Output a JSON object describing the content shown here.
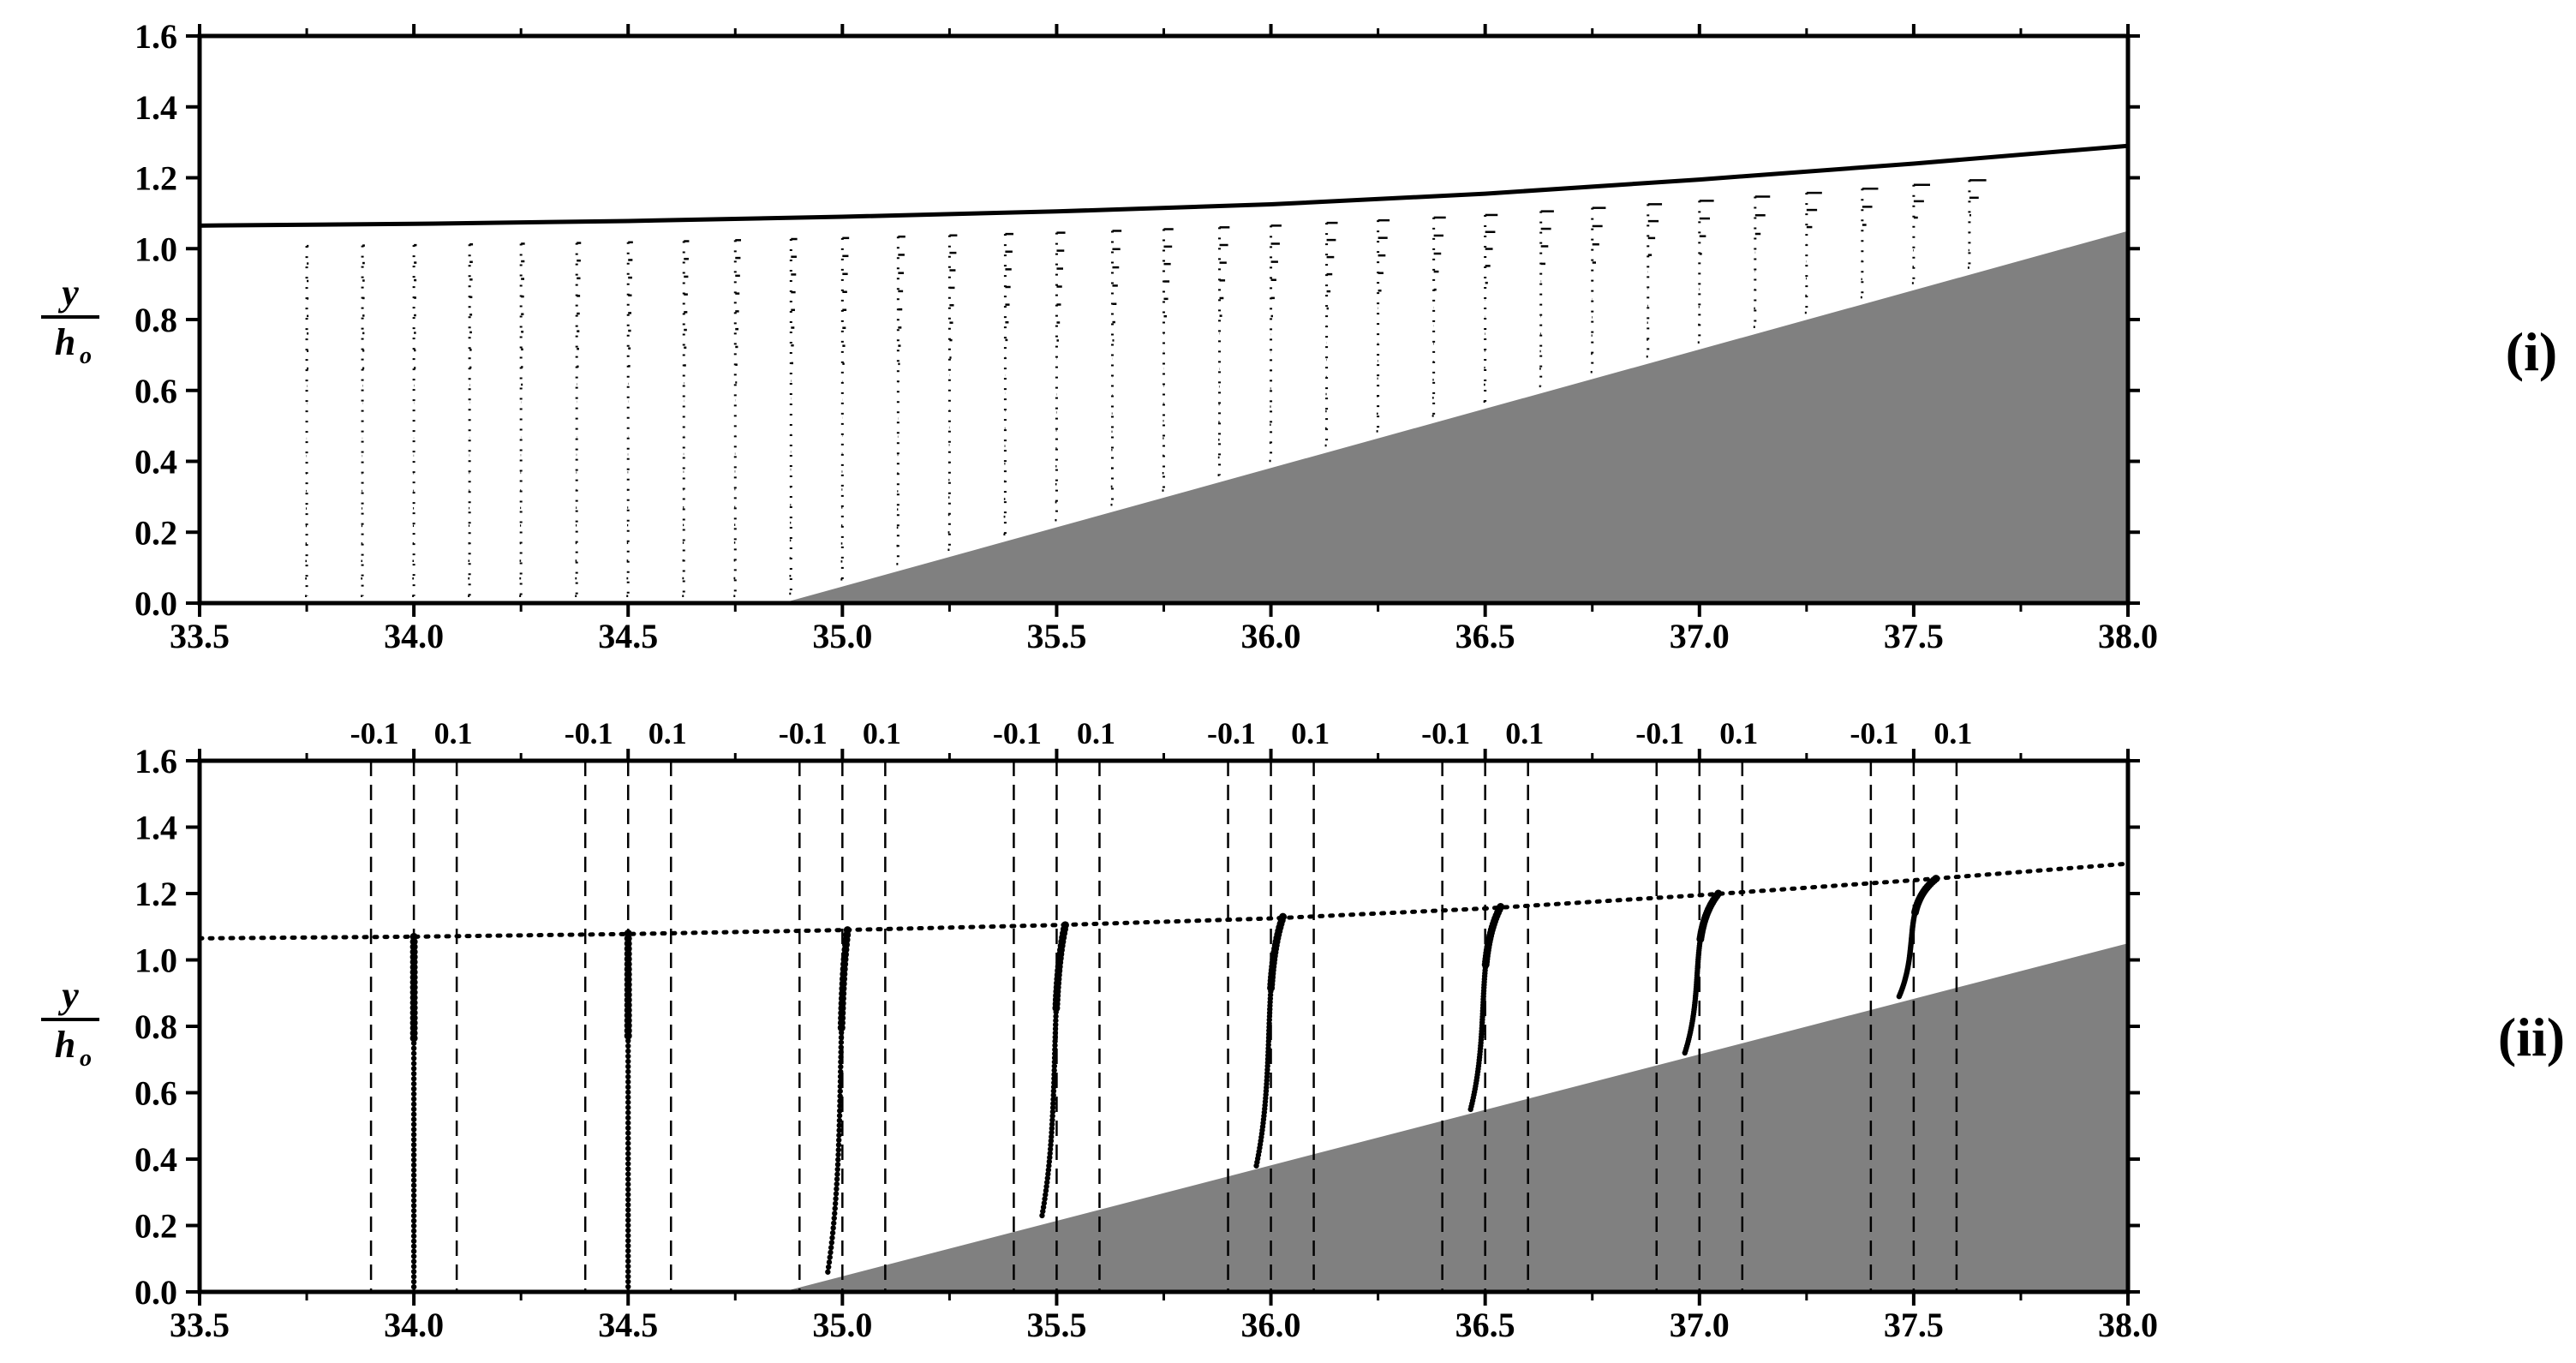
{
  "chart_data": [
    {
      "type": "line",
      "panel_label": "(i)",
      "ylabel": {
        "numerator": "y",
        "denominator": "h",
        "subscript": "o"
      },
      "xlim": [
        33.5,
        38.0
      ],
      "ylim": [
        0.0,
        1.6
      ],
      "xticks": [
        "33.5",
        "34.0",
        "34.5",
        "35.0",
        "35.5",
        "36.0",
        "36.5",
        "37.0",
        "37.5",
        "38.0"
      ],
      "yticks": [
        "0.0",
        "0.2",
        "0.4",
        "0.6",
        "0.8",
        "1.0",
        "1.2",
        "1.4",
        "1.6"
      ],
      "free_surface": {
        "x": [
          33.5,
          34.0,
          34.5,
          35.0,
          35.5,
          36.0,
          36.5,
          37.0,
          37.5,
          38.0
        ],
        "y": [
          1.065,
          1.07,
          1.078,
          1.09,
          1.105,
          1.125,
          1.155,
          1.195,
          1.24,
          1.29
        ]
      },
      "slope": {
        "x": [
          34.86,
          38.0
        ],
        "y": [
          0.0,
          1.05
        ]
      },
      "velocity_profiles_x": [
        33.75,
        33.88,
        34.0,
        34.13,
        34.25,
        34.38,
        34.5,
        34.63,
        34.75,
        34.88,
        35.0,
        35.13,
        35.25,
        35.38,
        35.5,
        35.63,
        35.75,
        35.88,
        36.0,
        36.13,
        36.25,
        36.38,
        36.5,
        36.63,
        36.75,
        36.88,
        37.0,
        37.13,
        37.25,
        37.38,
        37.5,
        37.63
      ]
    },
    {
      "type": "line",
      "panel_label": "(ii)",
      "ylabel": {
        "numerator": "y",
        "denominator": "h",
        "subscript": "o"
      },
      "xlim": [
        33.5,
        38.0
      ],
      "ylim": [
        0.0,
        1.6
      ],
      "xticks": [
        "33.5",
        "34.0",
        "34.5",
        "35.0",
        "35.5",
        "36.0",
        "36.5",
        "37.0",
        "37.5",
        "38.0"
      ],
      "yticks": [
        "0.0",
        "0.2",
        "0.4",
        "0.6",
        "0.8",
        "1.0",
        "1.2",
        "1.4",
        "1.6"
      ],
      "free_surface": {
        "x": [
          33.5,
          34.0,
          34.5,
          35.0,
          35.5,
          36.0,
          36.5,
          37.0,
          37.5,
          38.0
        ],
        "y": [
          1.065,
          1.07,
          1.078,
          1.09,
          1.105,
          1.125,
          1.155,
          1.195,
          1.24,
          1.29
        ]
      },
      "slope": {
        "x": [
          34.86,
          38.0
        ],
        "y": [
          0.0,
          1.05
        ]
      },
      "profile_stations": [
        {
          "x0": 34.0,
          "bottom": 0.0,
          "top": 1.07,
          "mins": "-0.1",
          "plus": "0.1"
        },
        {
          "x0": 34.5,
          "bottom": 0.0,
          "top": 1.08,
          "mins": "-0.1",
          "plus": "0.1"
        },
        {
          "x0": 35.0,
          "bottom": 0.06,
          "top": 1.09,
          "mins": "-0.1",
          "plus": "0.1"
        },
        {
          "x0": 35.5,
          "bottom": 0.23,
          "top": 1.105,
          "mins": "-0.1",
          "plus": "0.1"
        },
        {
          "x0": 36.0,
          "bottom": 0.38,
          "top": 1.13,
          "mins": "-0.1",
          "plus": "0.1"
        },
        {
          "x0": 36.5,
          "bottom": 0.55,
          "top": 1.16,
          "mins": "-0.1",
          "plus": "0.1"
        },
        {
          "x0": 37.0,
          "bottom": 0.72,
          "top": 1.2,
          "mins": "-0.1",
          "plus": "0.1"
        },
        {
          "x0": 37.5,
          "bottom": 0.89,
          "top": 1.245,
          "mins": "-0.1",
          "plus": "0.1"
        }
      ]
    }
  ]
}
